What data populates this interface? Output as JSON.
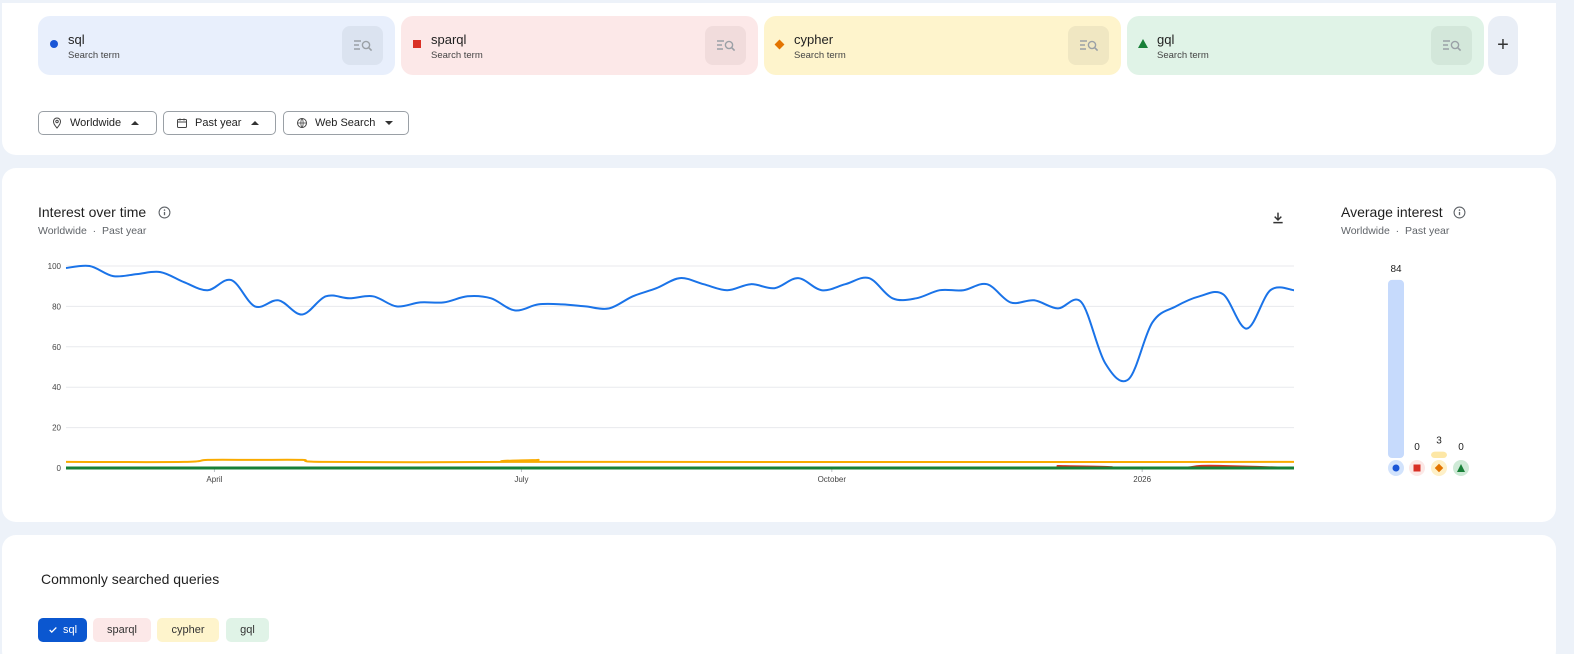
{
  "terms": [
    {
      "name": "sql",
      "subtitle": "Search term",
      "color": "#1a56d6",
      "bg": "#e8effc",
      "btn_bg": "#dbe3f0",
      "marker": "circle"
    },
    {
      "name": "sparql",
      "subtitle": "Search term",
      "color": "#d93025",
      "bg": "#fce8e8",
      "btn_bg": "#f1dcdc",
      "marker": "square"
    },
    {
      "name": "cypher",
      "subtitle": "Search term",
      "color": "#e37400",
      "bg": "#fef4cc",
      "btn_bg": "#f0e7c2",
      "marker": "diamond"
    },
    {
      "name": "gql",
      "subtitle": "Search term",
      "color": "#188038",
      "bg": "#e0f3e7",
      "btn_bg": "#d3e7da",
      "marker": "triangle"
    }
  ],
  "add_label": "+",
  "filters": {
    "location": "Worldwide",
    "time": "Past year",
    "property": "Web Search"
  },
  "interest_over_time": {
    "title": "Interest over time",
    "sub_location": "Worldwide",
    "sub_time": "Past year",
    "separator": "·"
  },
  "average_interest": {
    "title": "Average interest",
    "sub_location": "Worldwide",
    "sub_time": "Past year",
    "separator": "·"
  },
  "queries": {
    "title": "Commonly searched queries",
    "chips": [
      "sql",
      "sparql",
      "cypher",
      "gql"
    ]
  },
  "chart_data": [
    {
      "type": "line",
      "title": "Interest over time",
      "x_range": [
        "2025-02-16",
        "2026-02-15"
      ],
      "x_tick_labels": [
        "April",
        "July",
        "October",
        "2026"
      ],
      "x_tick_dates": [
        "2025-04-01",
        "2025-07-01",
        "2025-10-01",
        "2026-01-01"
      ],
      "y_ticks": [
        0,
        20,
        40,
        60,
        80,
        100
      ],
      "ylim": [
        0,
        100
      ],
      "grid": true,
      "series": [
        {
          "name": "sql",
          "color": "#1a73e8",
          "x": [
            "2025-02-16",
            "2025-02-23",
            "2025-03-02",
            "2025-03-09",
            "2025-03-16",
            "2025-03-23",
            "2025-03-30",
            "2025-04-06",
            "2025-04-13",
            "2025-04-20",
            "2025-04-27",
            "2025-05-04",
            "2025-05-11",
            "2025-05-18",
            "2025-05-25",
            "2025-06-01",
            "2025-06-08",
            "2025-06-15",
            "2025-06-22",
            "2025-06-29",
            "2025-07-06",
            "2025-07-13",
            "2025-07-20",
            "2025-07-27",
            "2025-08-03",
            "2025-08-10",
            "2025-08-17",
            "2025-08-24",
            "2025-08-31",
            "2025-09-07",
            "2025-09-14",
            "2025-09-21",
            "2025-09-28",
            "2025-10-05",
            "2025-10-12",
            "2025-10-19",
            "2025-10-26",
            "2025-11-02",
            "2025-11-09",
            "2025-11-16",
            "2025-11-23",
            "2025-11-30",
            "2025-12-07",
            "2025-12-14",
            "2025-12-21",
            "2025-12-28",
            "2026-01-04",
            "2026-01-11",
            "2026-01-18",
            "2026-01-25",
            "2026-02-01",
            "2026-02-08",
            "2026-02-15"
          ],
          "values": [
            99,
            100,
            95,
            96,
            97,
            92,
            88,
            93,
            80,
            83,
            76,
            85,
            84,
            85,
            80,
            82,
            82,
            85,
            84,
            78,
            81,
            81,
            80,
            79,
            85,
            89,
            94,
            91,
            88,
            91,
            89,
            94,
            88,
            91,
            94,
            84,
            84,
            88,
            88,
            91,
            82,
            83,
            79,
            82,
            52,
            44,
            72,
            80,
            85,
            86,
            69,
            88,
            88
          ]
        },
        {
          "name": "sparql",
          "color": "#d93025",
          "x": [
            "2025-02-16",
            "2025-11-30",
            "2025-12-07",
            "2025-12-14",
            "2026-01-11",
            "2026-01-18",
            "2026-01-25",
            "2026-02-15"
          ],
          "values": [
            0,
            0,
            1,
            0,
            0,
            1,
            1,
            0
          ]
        },
        {
          "name": "cypher",
          "color": "#f9ab00",
          "x": [
            "2025-02-16",
            "2025-03-23",
            "2025-03-30",
            "2025-04-13",
            "2025-04-27",
            "2025-05-04",
            "2025-06-29",
            "2025-07-06",
            "2025-07-13",
            "2026-02-15"
          ],
          "values": [
            3,
            3,
            4,
            4,
            4,
            3,
            3,
            4,
            3,
            3
          ]
        },
        {
          "name": "gql",
          "color": "#188038",
          "x": [
            "2025-02-16",
            "2026-02-15"
          ],
          "values": [
            0,
            0
          ]
        }
      ]
    },
    {
      "type": "bar",
      "title": "Average interest",
      "categories": [
        "sql",
        "sparql",
        "cypher",
        "gql"
      ],
      "values": [
        84,
        0,
        3,
        0
      ],
      "value_labels": [
        "84",
        "0",
        "3",
        "0"
      ],
      "ylim": [
        0,
        100
      ]
    }
  ]
}
